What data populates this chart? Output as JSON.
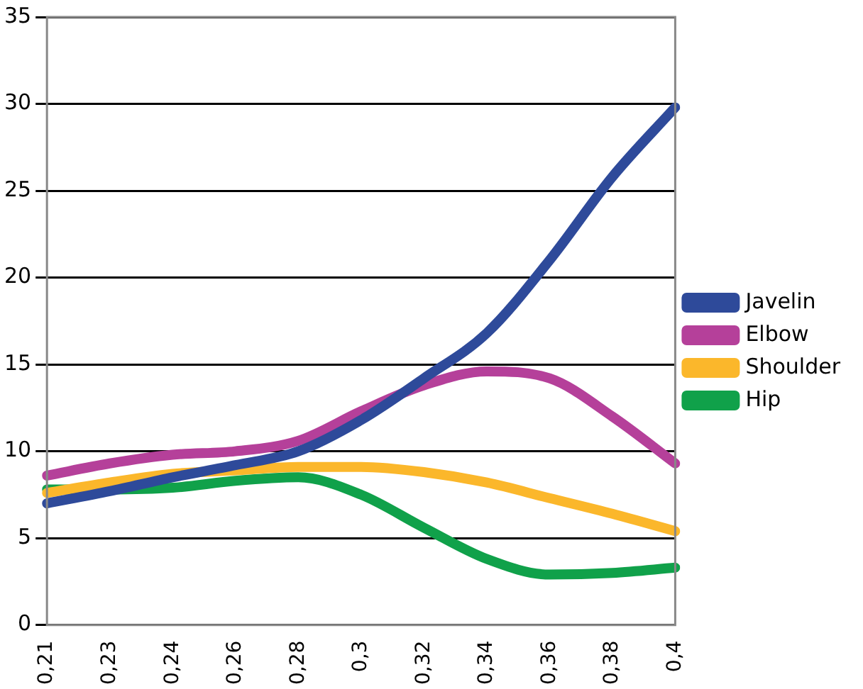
{
  "chart_data": {
    "type": "line",
    "categories": [
      "0,21",
      "0,23",
      "0,24",
      "0,26",
      "0,28",
      "0,3",
      "0,32",
      "0,34",
      "0,36",
      "0,38",
      "0,4"
    ],
    "series": [
      {
        "name": "Javelin",
        "color": "#2e4a9a",
        "values": [
          7,
          7.7,
          8.5,
          9.2,
          10,
          11.8,
          14.2,
          16.8,
          21,
          25.8,
          29.8
        ]
      },
      {
        "name": "Elbow",
        "color": "#b5409a",
        "values": [
          8.6,
          9.3,
          9.8,
          10,
          10.6,
          12.3,
          13.8,
          14.6,
          14.2,
          12,
          9.3
        ]
      },
      {
        "name": "Shoulder",
        "color": "#fbb72b",
        "values": [
          7.6,
          8.2,
          8.7,
          8.9,
          9.1,
          9.1,
          8.8,
          8.2,
          7.3,
          6.4,
          5.4
        ]
      },
      {
        "name": "Hip",
        "color": "#10a14a",
        "values": [
          7.8,
          7.8,
          7.9,
          8.3,
          8.5,
          7.5,
          5.6,
          3.8,
          2.9,
          3,
          3.3
        ]
      }
    ],
    "ylim": [
      0,
      35
    ],
    "yticks": [
      0,
      5,
      10,
      15,
      20,
      25,
      30,
      35
    ],
    "grid": "y",
    "legend": "right",
    "marker": "none",
    "line_style": "solid"
  }
}
